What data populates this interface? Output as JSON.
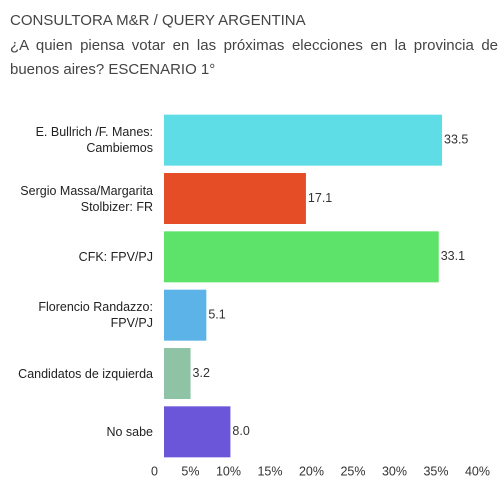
{
  "chart_data": {
    "type": "bar",
    "orientation": "horizontal",
    "title": "CONSULTORA M&R / QUERY ARGENTINA",
    "subtitle": "¿A quien piensa votar en las próximas elecciones en la provincia de buenos aires? ESCENARIO 1°",
    "categories": [
      "E. Bullrich /F. Manes: Cambiemos",
      "Sergio Massa/Margarita Stolbizer: FR",
      "CFK: FPV/PJ",
      "Florencio Randazzo: FPV/PJ",
      "Candidatos de izquierda",
      "No sabe"
    ],
    "values": [
      33.5,
      17.1,
      33.1,
      5.1,
      3.2,
      8
    ],
    "value_labels": [
      "33.5",
      "17.1",
      "33.1",
      "5.1",
      "3.2",
      "8.0"
    ],
    "colors": [
      "#5fdde6",
      "#e44d26",
      "#5ee36a",
      "#5bb3e8",
      "#8fc3a6",
      "#6b55d9"
    ],
    "xlim": [
      0,
      40
    ],
    "xticks": [
      0,
      {
        "value": 5,
        "label": "5%"
      },
      {
        "value": 10,
        "label": "10%"
      },
      {
        "value": 15,
        "label": "15%"
      },
      {
        "value": 20,
        "label": "20%"
      },
      {
        "value": 25,
        "label": "25%"
      },
      {
        "value": 30,
        "label": "30%"
      },
      {
        "value": 35,
        "label": "35%"
      },
      {
        "value": 40,
        "label": "40%"
      }
    ]
  }
}
